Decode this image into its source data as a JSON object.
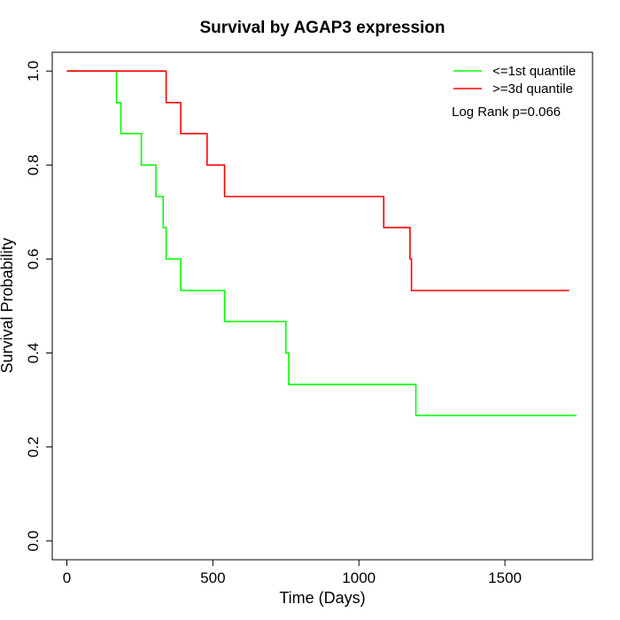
{
  "chart_data": {
    "type": "line",
    "title": "Survival by AGAP3 expression",
    "xlabel": "Time (Days)",
    "ylabel": "Survival Probability",
    "xlim": [
      -50,
      1800
    ],
    "ylim": [
      -0.04,
      1.04
    ],
    "xticks": [
      0,
      500,
      1000,
      1500
    ],
    "yticks": [
      0.0,
      0.2,
      0.4,
      0.6,
      0.8,
      1.0
    ],
    "xtick_labels": [
      "0",
      "500",
      "1000",
      "1500"
    ],
    "ytick_labels": [
      "0.0",
      "0.2",
      "0.4",
      "0.6",
      "0.8",
      "1.0"
    ],
    "grid": false,
    "legend_position": "top-right",
    "annotation": "Log Rank p=0.066",
    "series": [
      {
        "name": "<=1st quantile",
        "color": "#00ff00",
        "step": true,
        "x": [
          0,
          170,
          185,
          255,
          305,
          330,
          340,
          390,
          540,
          750,
          760,
          1195,
          1745
        ],
        "y": [
          1.0,
          0.933,
          0.867,
          0.8,
          0.733,
          0.667,
          0.6,
          0.533,
          0.467,
          0.4,
          0.333,
          0.267,
          0.267
        ]
      },
      {
        "name": ">=3d quantile",
        "color": "#ff0000",
        "step": true,
        "x": [
          0,
          340,
          390,
          480,
          540,
          1085,
          1175,
          1180,
          1720
        ],
        "y": [
          1.0,
          0.933,
          0.867,
          0.8,
          0.733,
          0.667,
          0.6,
          0.533,
          0.533
        ]
      }
    ]
  }
}
